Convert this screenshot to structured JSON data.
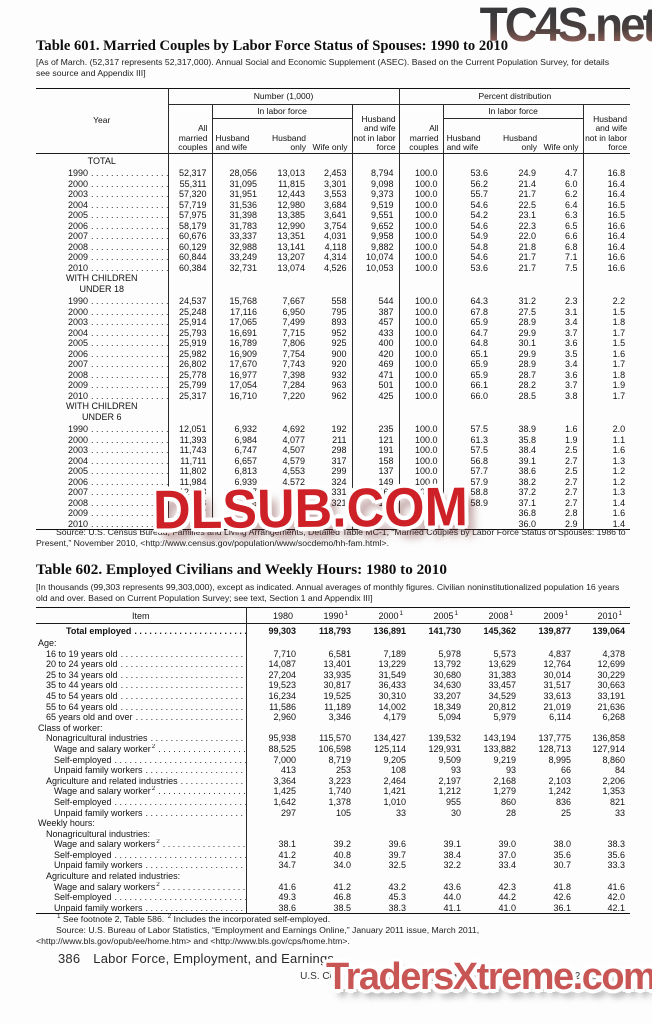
{
  "watermarks": {
    "top": "TC4S.net",
    "middle": "DLSUB.COM",
    "bottom": "TradersXtreme.com"
  },
  "leaders": ". . . . . . . . . . . . . . . . . . . . . . . . . . . . . . . . . . . . . . . .",
  "colors": {
    "watermark_red": "#ce2027",
    "watermark_soft_red": "#c75654",
    "watermark_gray": "#39393b",
    "rule": "#222222"
  },
  "table601": {
    "title": "Table 601. Married Couples by Labor Force Status of Spouses: 1990 to 2010",
    "note": "[As of March. (52,317 represents 52,317,000). Annual Social and Economic Supplement (ASEC). Based on the Current Population Survey, for details see source and Appendix III]",
    "header": {
      "year": "Year",
      "number_group": "Number (1,000)",
      "percent_group": "Percent distribution",
      "in_labor_force": "In labor force",
      "all_married": "All married couples",
      "husband_wife": "Husband and wife",
      "husband_only": "Husband only",
      "wife_only": "Wife only",
      "not_in_lf": "Husband and wife not in labor force"
    },
    "sections": [
      {
        "label": [
          "TOTAL"
        ],
        "rows": [
          {
            "year": "1990",
            "cells": [
              "52,317",
              "28,056",
              "13,013",
              "2,453",
              "8,794",
              "100.0",
              "53.6",
              "24.9",
              "4.7",
              "16.8"
            ]
          },
          {
            "year": "2000",
            "cells": [
              "55,311",
              "31,095",
              "11,815",
              "3,301",
              "9,098",
              "100.0",
              "56.2",
              "21.4",
              "6.0",
              "16.4"
            ]
          },
          {
            "year": "2003",
            "cells": [
              "57,320",
              "31,951",
              "12,443",
              "3,553",
              "9,373",
              "100.0",
              "55.7",
              "21.7",
              "6.2",
              "16.4"
            ]
          },
          {
            "year": "2004",
            "cells": [
              "57,719",
              "31,536",
              "12,980",
              "3,684",
              "9,519",
              "100.0",
              "54.6",
              "22.5",
              "6.4",
              "16.5"
            ]
          },
          {
            "year": "2005",
            "cells": [
              "57,975",
              "31,398",
              "13,385",
              "3,641",
              "9,551",
              "100.0",
              "54.2",
              "23.1",
              "6.3",
              "16.5"
            ]
          },
          {
            "year": "2006",
            "cells": [
              "58,179",
              "31,783",
              "12,990",
              "3,754",
              "9,652",
              "100.0",
              "54.6",
              "22.3",
              "6.5",
              "16.6"
            ]
          },
          {
            "year": "2007",
            "cells": [
              "60,676",
              "33,337",
              "13,351",
              "4,031",
              "9,958",
              "100.0",
              "54.9",
              "22.0",
              "6.6",
              "16.4"
            ]
          },
          {
            "year": "2008",
            "cells": [
              "60,129",
              "32,988",
              "13,141",
              "4,118",
              "9,882",
              "100.0",
              "54.8",
              "21.8",
              "6.8",
              "16.4"
            ]
          },
          {
            "year": "2009",
            "cells": [
              "60,844",
              "33,249",
              "13,207",
              "4,314",
              "10,074",
              "100.0",
              "54.6",
              "21.7",
              "7.1",
              "16.6"
            ]
          },
          {
            "year": "2010",
            "cells": [
              "60,384",
              "32,731",
              "13,074",
              "4,526",
              "10,053",
              "100.0",
              "53.6",
              "21.7",
              "7.5",
              "16.6"
            ]
          }
        ]
      },
      {
        "label": [
          "WITH CHILDREN",
          "UNDER 18"
        ],
        "rows": [
          {
            "year": "1990",
            "cells": [
              "24,537",
              "15,768",
              "7,667",
              "558",
              "544",
              "100.0",
              "64.3",
              "31.2",
              "2.3",
              "2.2"
            ]
          },
          {
            "year": "2000",
            "cells": [
              "25,248",
              "17,116",
              "6,950",
              "795",
              "387",
              "100.0",
              "67.8",
              "27.5",
              "3.1",
              "1.5"
            ]
          },
          {
            "year": "2003",
            "cells": [
              "25,914",
              "17,065",
              "7,499",
              "893",
              "457",
              "100.0",
              "65.9",
              "28.9",
              "3.4",
              "1.8"
            ]
          },
          {
            "year": "2004",
            "cells": [
              "25,793",
              "16,691",
              "7,715",
              "952",
              "433",
              "100.0",
              "64.7",
              "29.9",
              "3.7",
              "1.7"
            ]
          },
          {
            "year": "2005",
            "cells": [
              "25,919",
              "16,789",
              "7,806",
              "925",
              "400",
              "100.0",
              "64.8",
              "30.1",
              "3.6",
              "1.5"
            ]
          },
          {
            "year": "2006",
            "cells": [
              "25,982",
              "16,909",
              "7,754",
              "900",
              "420",
              "100.0",
              "65.1",
              "29.9",
              "3.5",
              "1.6"
            ]
          },
          {
            "year": "2007",
            "cells": [
              "26,802",
              "17,670",
              "7,743",
              "920",
              "469",
              "100.0",
              "65.9",
              "28.9",
              "3.4",
              "1.7"
            ]
          },
          {
            "year": "2008",
            "cells": [
              "25,778",
              "16,977",
              "7,398",
              "932",
              "471",
              "100.0",
              "65.9",
              "28.7",
              "3.6",
              "1.8"
            ]
          },
          {
            "year": "2009",
            "cells": [
              "25,799",
              "17,054",
              "7,284",
              "963",
              "501",
              "100.0",
              "66.1",
              "28.2",
              "3.7",
              "1.9"
            ]
          },
          {
            "year": "2010",
            "cells": [
              "25,317",
              "16,710",
              "7,220",
              "962",
              "425",
              "100.0",
              "66.0",
              "28.5",
              "3.8",
              "1.7"
            ]
          }
        ]
      },
      {
        "label": [
          "WITH CHILDREN",
          "UNDER 6"
        ],
        "rows": [
          {
            "year": "1990",
            "cells": [
              "12,051",
              "6,932",
              "4,692",
              "192",
              "235",
              "100.0",
              "57.5",
              "38.9",
              "1.6",
              "2.0"
            ]
          },
          {
            "year": "2000",
            "cells": [
              "11,393",
              "6,984",
              "4,077",
              "211",
              "121",
              "100.0",
              "61.3",
              "35.8",
              "1.9",
              "1.1"
            ]
          },
          {
            "year": "2003",
            "cells": [
              "11,743",
              "6,747",
              "4,507",
              "298",
              "191",
              "100.0",
              "57.5",
              "38.4",
              "2.5",
              "1.6"
            ]
          },
          {
            "year": "2004",
            "cells": [
              "11,711",
              "6,657",
              "4,579",
              "317",
              "158",
              "100.0",
              "56.8",
              "39.1",
              "2.7",
              "1.3"
            ]
          },
          {
            "year": "2005",
            "cells": [
              "11,802",
              "6,813",
              "4,553",
              "299",
              "137",
              "100.0",
              "57.7",
              "38.6",
              "2.5",
              "1.2"
            ]
          },
          {
            "year": "2006",
            "cells": [
              "11,984",
              "6,939",
              "4,572",
              "324",
              "149",
              "100.0",
              "57.9",
              "38.2",
              "2.7",
              "1.2"
            ]
          },
          {
            "year": "2007",
            "cells": [
              "12,468",
              "7,337",
              "4,633",
              "331",
              "167",
              "100.0",
              "58.8",
              "37.2",
              "2.7",
              "1.3"
            ]
          },
          {
            "year": "2008",
            "cells": [
              "11,848",
              "6,976",
              "4,382",
              "321",
              "169",
              "100.0",
              "58.9",
              "37.1",
              "2.7",
              "1.4"
            ]
          },
          {
            "year": "2009",
            "cells": [
              "11,7",
              "",
              "",
              "",
              "",
              "",
              "",
              "36.8",
              "2.8",
              "1.6"
            ]
          },
          {
            "year": "2010",
            "cells": [
              "11,5",
              "",
              "",
              "",
              "",
              "",
              "",
              "36.0",
              "2.9",
              "1.4"
            ]
          }
        ]
      }
    ],
    "source": "Source: U.S. Census Bureau, Families and Living Arrangements, Detailed Table MC-1, “Married Couples by Labor Force Status of Spouses: 1986 to Present,” November 2010, <http://www.census.gov/population/www/socdemo/hh-fam.html>."
  },
  "table602": {
    "title": "Table 602. Employed Civilians and Weekly Hours: 1980 to 2010",
    "note": "[In thousands (99,303 represents 99,303,000), except as indicated. Annual averages of monthly figures. Civilian noninstitutionalized population 16 years old and over. Based on Current Population Survey; see text, Section 1 and Appendix III]",
    "item_header": "Item",
    "col_headers": [
      {
        "label": "1980",
        "sup": ""
      },
      {
        "label": "1990",
        "sup": "1"
      },
      {
        "label": "2000",
        "sup": "1"
      },
      {
        "label": "2005",
        "sup": "1"
      },
      {
        "label": "2008",
        "sup": "1"
      },
      {
        "label": "2009",
        "sup": "1"
      },
      {
        "label": "2010",
        "sup": "1"
      }
    ],
    "rows": [
      {
        "label": "Total employed",
        "indent": 3,
        "bold": true,
        "leader": true,
        "values": [
          "99,303",
          "118,793",
          "136,891",
          "141,730",
          "145,362",
          "139,877",
          "139,064"
        ]
      },
      {
        "label": "Age:",
        "indent": 0,
        "values": []
      },
      {
        "label": "16 to 19 years old",
        "indent": 1,
        "leader": true,
        "values": [
          "7,710",
          "6,581",
          "7,189",
          "5,978",
          "5,573",
          "4,837",
          "4,378"
        ]
      },
      {
        "label": "20 to 24 years old",
        "indent": 1,
        "leader": true,
        "values": [
          "14,087",
          "13,401",
          "13,229",
          "13,792",
          "13,629",
          "12,764",
          "12,699"
        ]
      },
      {
        "label": "25 to 34 years old",
        "indent": 1,
        "leader": true,
        "values": [
          "27,204",
          "33,935",
          "31,549",
          "30,680",
          "31,383",
          "30,014",
          "30,229"
        ]
      },
      {
        "label": "35 to 44 years old",
        "indent": 1,
        "leader": true,
        "values": [
          "19,523",
          "30,817",
          "36,433",
          "34,630",
          "33,457",
          "31,517",
          "30,663"
        ]
      },
      {
        "label": "45 to 54 years old",
        "indent": 1,
        "leader": true,
        "values": [
          "16,234",
          "19,525",
          "30,310",
          "33,207",
          "34,529",
          "33,613",
          "33,191"
        ]
      },
      {
        "label": "55 to 64 years old",
        "indent": 1,
        "leader": true,
        "values": [
          "11,586",
          "11,189",
          "14,002",
          "18,349",
          "20,812",
          "21,019",
          "21,636"
        ]
      },
      {
        "label": "65 years old and over",
        "indent": 1,
        "leader": true,
        "values": [
          "2,960",
          "3,346",
          "4,179",
          "5,094",
          "5,979",
          "6,114",
          "6,268"
        ]
      },
      {
        "label": "Class of worker:",
        "indent": 0,
        "values": []
      },
      {
        "label": "Nonagricultural industries",
        "indent": 1,
        "leader": true,
        "values": [
          "95,938",
          "115,570",
          "134,427",
          "139,532",
          "143,194",
          "137,775",
          "136,858"
        ]
      },
      {
        "label": "Wage and salary worker",
        "sup": "2",
        "indent": 2,
        "leader": true,
        "values": [
          "88,525",
          "106,598",
          "125,114",
          "129,931",
          "133,882",
          "128,713",
          "127,914"
        ]
      },
      {
        "label": "Self-employed",
        "indent": 2,
        "leader": true,
        "values": [
          "7,000",
          "8,719",
          "9,205",
          "9,509",
          "9,219",
          "8,995",
          "8,860"
        ]
      },
      {
        "label": "Unpaid family workers",
        "indent": 2,
        "leader": true,
        "values": [
          "413",
          "253",
          "108",
          "93",
          "93",
          "66",
          "84"
        ]
      },
      {
        "label": "Agriculture and related industries",
        "indent": 1,
        "leader": true,
        "values": [
          "3,364",
          "3,223",
          "2,464",
          "2,197",
          "2,168",
          "2,103",
          "2,206"
        ]
      },
      {
        "label": "Wage and salary worker",
        "sup": "2",
        "indent": 2,
        "leader": true,
        "values": [
          "1,425",
          "1,740",
          "1,421",
          "1,212",
          "1,279",
          "1,242",
          "1,353"
        ]
      },
      {
        "label": "Self-employed",
        "indent": 2,
        "leader": true,
        "values": [
          "1,642",
          "1,378",
          "1,010",
          "955",
          "860",
          "836",
          "821"
        ]
      },
      {
        "label": "Unpaid family workers",
        "indent": 2,
        "leader": true,
        "values": [
          "297",
          "105",
          "33",
          "30",
          "28",
          "25",
          "33"
        ]
      },
      {
        "label": "Weekly hours:",
        "indent": 0,
        "values": []
      },
      {
        "label": "Nonagricultural industries:",
        "indent": 1,
        "values": []
      },
      {
        "label": "Wage and salary workers",
        "sup": "2",
        "indent": 2,
        "leader": true,
        "values": [
          "38.1",
          "39.2",
          "39.6",
          "39.1",
          "39.0",
          "38.0",
          "38.3"
        ]
      },
      {
        "label": "Self-employed",
        "indent": 2,
        "leader": true,
        "values": [
          "41.2",
          "40.8",
          "39.7",
          "38.4",
          "37.0",
          "35.6",
          "35.6"
        ]
      },
      {
        "label": "Unpaid family workers",
        "indent": 2,
        "leader": true,
        "values": [
          "34.7",
          "34.0",
          "32.5",
          "32.2",
          "33.4",
          "30.7",
          "33.3"
        ]
      },
      {
        "label": "Agriculture and related industries:",
        "indent": 1,
        "values": []
      },
      {
        "label": "Wage and salary workers",
        "sup": "2",
        "indent": 2,
        "leader": true,
        "values": [
          "41.6",
          "41.2",
          "43.2",
          "43.6",
          "42.3",
          "41.8",
          "41.6"
        ]
      },
      {
        "label": "Self-employed",
        "indent": 2,
        "leader": true,
        "values": [
          "49.3",
          "46.8",
          "45.3",
          "44.0",
          "44.2",
          "42.6",
          "42.0"
        ]
      },
      {
        "label": "Unpaid family workers",
        "indent": 2,
        "leader": true,
        "values": [
          "38.6",
          "38.5",
          "38.3",
          "41.1",
          "41.0",
          "36.1",
          "42.1"
        ]
      }
    ],
    "footnote_parts": [
      {
        "sup": "1",
        "text": " See footnote 2, Table 586. "
      },
      {
        "sup": "2",
        "text": " Includes the incorporated self-employed."
      }
    ],
    "source": "Source: U.S. Bureau of Labor Statistics, “Employment and Earnings Online,” January 2011 issue, March 2011, <http://www.bls.gov/opub/ee/home.htm> and <http://www.bls.gov/cps/home.htm>."
  },
  "footer": {
    "page_number": "386",
    "section_title": "Labor Force, Employment, and Earnings",
    "imprint": "U.S. Census Bureau, Statistical Abstract of the United States: 2012"
  }
}
